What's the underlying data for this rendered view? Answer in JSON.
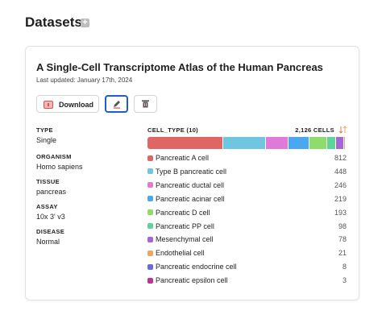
{
  "header": {
    "title": "Datasets"
  },
  "dataset": {
    "title": "A Single-Cell Transcriptome Atlas of the Human Pancreas",
    "last_updated": "Last updated: January 17th, 2024",
    "actions": {
      "download": "Download"
    },
    "metadata": [
      {
        "label": "TYPE",
        "value": "Single"
      },
      {
        "label": "ORGANISM",
        "value": "Homo sapiens"
      },
      {
        "label": "TISSUE",
        "value": "pancreas"
      },
      {
        "label": "ASSAY",
        "value": "10x 3' v3"
      },
      {
        "label": "DISEASE",
        "value": "Normal"
      }
    ],
    "cell_types": {
      "title": "CELL_TYPE (10)",
      "total": "2,126 CELLS",
      "items": [
        {
          "name": "Pancreatic A cell",
          "color": "#e06666",
          "count": 812
        },
        {
          "name": "Type B pancreatic cell",
          "color": "#6ec6e0",
          "count": 448
        },
        {
          "name": "Pancreatic ductal cell",
          "color": "#e07ad8",
          "count": 246
        },
        {
          "name": "Pancreatic acinar cell",
          "color": "#4aa8f0",
          "count": 219
        },
        {
          "name": "Pancreatic D cell",
          "color": "#8fdc6a",
          "count": 193
        },
        {
          "name": "Pancreatic PP cell",
          "color": "#5fd39a",
          "count": 98
        },
        {
          "name": "Mesenchymal cell",
          "color": "#a566d8",
          "count": 78
        },
        {
          "name": "Endothelial cell",
          "color": "#f2a65a",
          "count": 21
        },
        {
          "name": "Pancreatic endocrine cell",
          "color": "#6a6ae0",
          "count": 8
        },
        {
          "name": "Pancreatic epsilon cell",
          "color": "#c2338c",
          "count": 3
        }
      ]
    }
  }
}
